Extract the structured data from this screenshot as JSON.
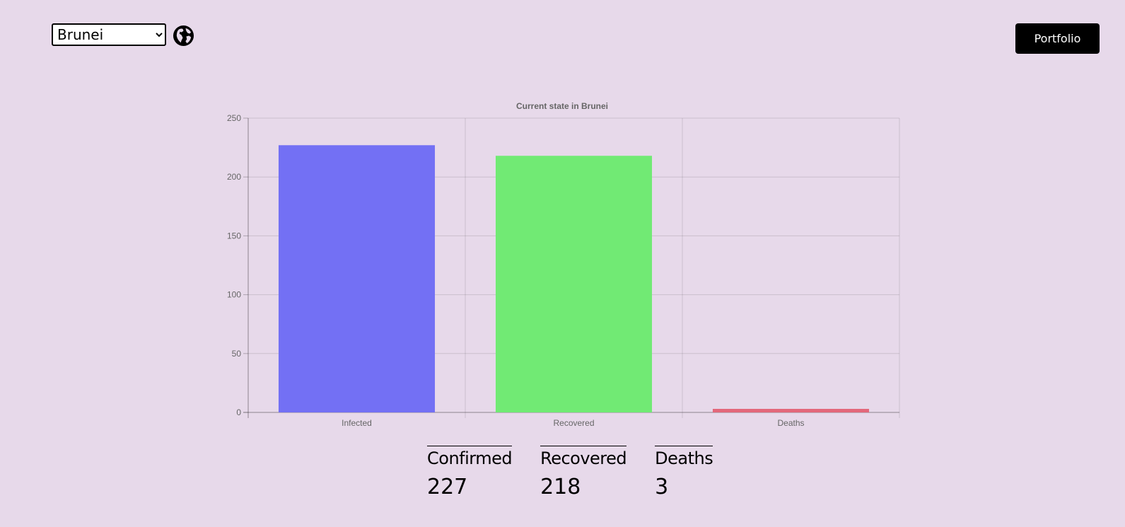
{
  "header": {
    "country_selected": "Brunei",
    "portfolio_label": "Portfolio"
  },
  "chart_data": {
    "type": "bar",
    "title": "Current state in Brunei",
    "categories": [
      "Infected",
      "Recovered",
      "Deaths"
    ],
    "values": [
      227,
      218,
      3
    ],
    "colors": [
      "#7370f4",
      "#71ea74",
      "#e3687b"
    ],
    "ylim": [
      0,
      250
    ],
    "yticks": [
      0,
      50,
      100,
      150,
      200,
      250
    ],
    "grid": true
  },
  "stats": [
    {
      "label": "Confirmed",
      "value": "227"
    },
    {
      "label": "Recovered",
      "value": "218"
    },
    {
      "label": "Deaths",
      "value": "3"
    }
  ]
}
